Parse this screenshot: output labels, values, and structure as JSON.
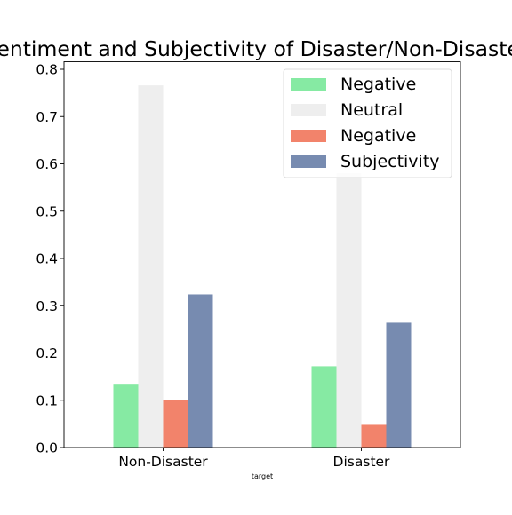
{
  "chart_data": {
    "type": "bar",
    "title": "Sentiment and Subjectivity of Disaster/Non-Disaster",
    "xlabel": "target",
    "ylabel": "",
    "categories": [
      "Non-Disaster",
      "Disaster"
    ],
    "ylim": [
      0,
      0.8
    ],
    "yticks": [
      "0.0",
      "0.1",
      "0.2",
      "0.3",
      "0.4",
      "0.5",
      "0.6",
      "0.7",
      "0.8"
    ],
    "grid": false,
    "legend_position": "top-right",
    "series": [
      {
        "name": "Negative",
        "color": "#86eaa3",
        "values": [
          0.133,
          0.172
        ]
      },
      {
        "name": "Neutral",
        "color": "#eeeeee",
        "values": [
          0.766,
          0.58
        ]
      },
      {
        "name": "Negative",
        "color": "#f2836b",
        "values": [
          0.101,
          0.048
        ]
      },
      {
        "name": "Subjectivity",
        "color": "#778bb0",
        "values": [
          0.324,
          0.264
        ]
      }
    ]
  }
}
